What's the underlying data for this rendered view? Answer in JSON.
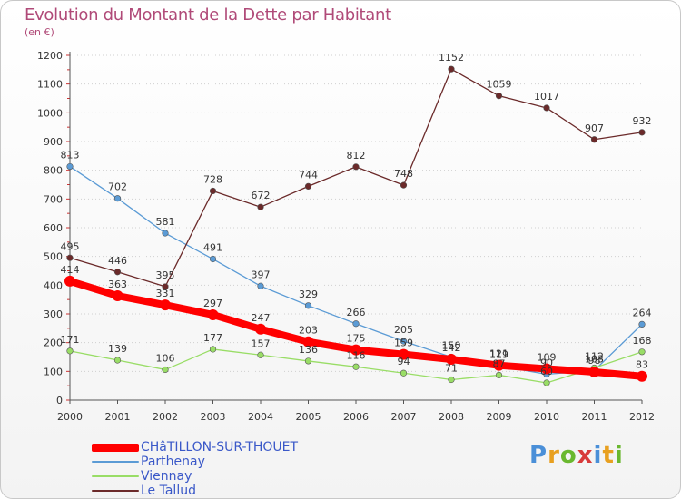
{
  "chart_data": {
    "type": "line",
    "title": "Evolution du Montant de la Dette par Habitant",
    "subtitle": "(en €)",
    "x": [
      "2000",
      "2001",
      "2002",
      "2003",
      "2004",
      "2005",
      "2006",
      "2007",
      "2008",
      "2009",
      "2010",
      "2011",
      "2012"
    ],
    "y_ticks": [
      "0",
      "100",
      "200",
      "300",
      "400",
      "500",
      "600",
      "700",
      "800",
      "900",
      "1000",
      "1100",
      "1200"
    ],
    "ylim": [
      0,
      1200
    ],
    "grid": "horizontal dotted",
    "legend_position": "bottom-left",
    "series": [
      {
        "name": "CHâTILLON-SUR-THOUET",
        "color": "#ff0000",
        "values": [
          414,
          363,
          331,
          297,
          247,
          203,
          175,
          159,
          142,
          121,
          109,
          98,
          83
        ],
        "labels": [
          "414",
          "363",
          "331",
          "297",
          "247",
          "203",
          "175",
          "159",
          "142",
          "121",
          "109",
          "98",
          "83"
        ]
      },
      {
        "name": "Parthenay",
        "color": "#5b9bd5",
        "values": [
          813,
          702,
          581,
          491,
          397,
          329,
          266,
          205,
          150,
          119,
          90,
          103,
          264
        ],
        "labels": [
          "813",
          "702",
          "581",
          "491",
          "397",
          "329",
          "266",
          "205",
          "150",
          "119",
          "90",
          "103",
          "264"
        ]
      },
      {
        "name": "Viennay",
        "color": "#99dd66",
        "values": [
          171,
          139,
          106,
          177,
          157,
          136,
          116,
          94,
          71,
          87,
          60,
          112,
          168
        ],
        "labels": [
          "171",
          "139",
          "106",
          "177",
          "157",
          "136",
          "116",
          "94",
          "71",
          "87",
          "60",
          "112",
          "168"
        ]
      },
      {
        "name": "Le Tallud",
        "color": "#6b2a2a",
        "values": [
          495,
          446,
          395,
          728,
          672,
          744,
          812,
          748,
          1152,
          1059,
          1017,
          907,
          932
        ],
        "labels": [
          "495",
          "446",
          "395",
          "728",
          "672",
          "744",
          "812",
          "748",
          "1152",
          "1059",
          "1017",
          "907",
          "932"
        ]
      }
    ]
  },
  "logo": {
    "letters": [
      "P",
      "r",
      "o",
      "x",
      "i",
      "t",
      "i"
    ],
    "colors": [
      "#4a8fd8",
      "#e8a020",
      "#6ab82f",
      "#d83a3a",
      "#4a8fd8",
      "#e8a020",
      "#6ab82f"
    ]
  }
}
